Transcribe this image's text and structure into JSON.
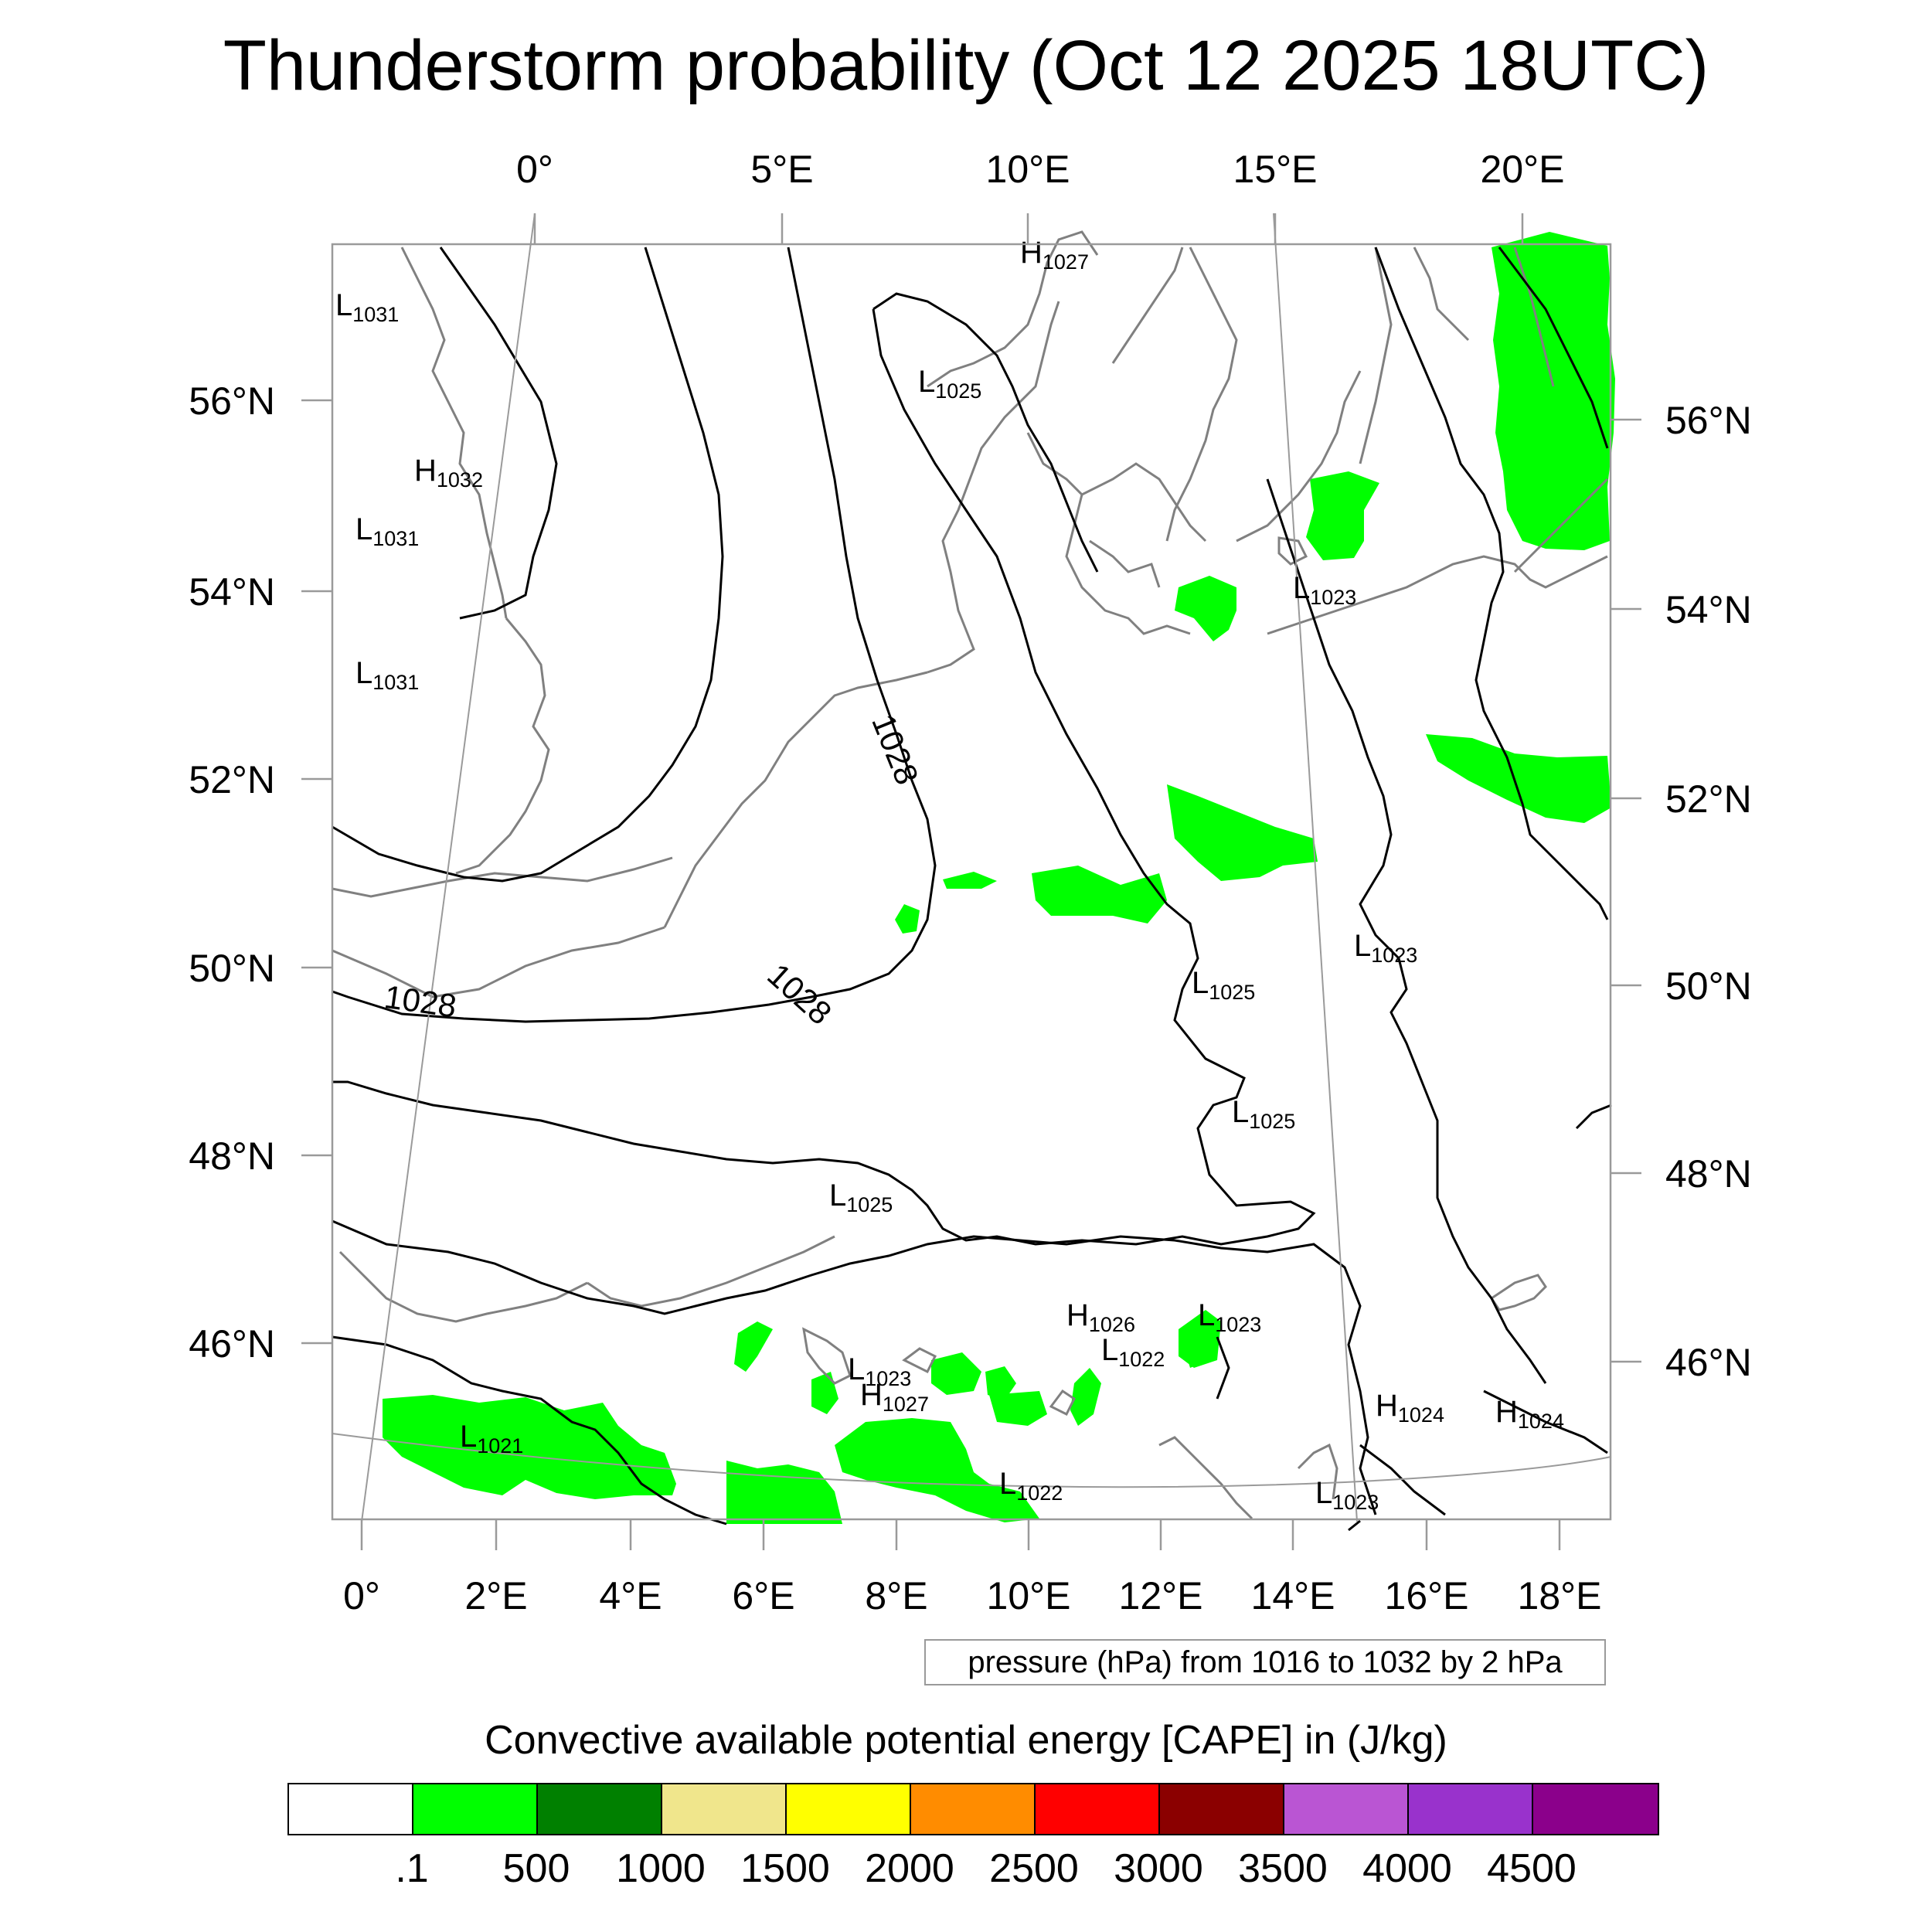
{
  "title": "Thunderstorm probability (Oct 12 2025 18UTC)",
  "axes": {
    "top_lon_labels": [
      "0°",
      "5°E",
      "10°E",
      "15°E",
      "20°E"
    ],
    "bottom_lon_labels": [
      "0°",
      "2°E",
      "4°E",
      "6°E",
      "8°E",
      "10°E",
      "12°E",
      "14°E",
      "16°E",
      "18°E"
    ],
    "left_lat_labels": [
      "56°N",
      "54°N",
      "52°N",
      "50°N",
      "48°N",
      "46°N"
    ],
    "right_lat_labels": [
      "56°N",
      "54°N",
      "52°N",
      "50°N",
      "48°N",
      "46°N"
    ]
  },
  "pressure_centers": [
    {
      "type": "H",
      "value": "1027"
    },
    {
      "type": "L",
      "value": "1031"
    },
    {
      "type": "L",
      "value": "1025"
    },
    {
      "type": "H",
      "value": "1032"
    },
    {
      "type": "L",
      "value": "1031"
    },
    {
      "type": "L",
      "value": "1023"
    },
    {
      "type": "L",
      "value": "1031"
    },
    {
      "type": "L",
      "value": "1023"
    },
    {
      "type": "L",
      "value": "1025"
    },
    {
      "type": "L",
      "value": "1025"
    },
    {
      "type": "L",
      "value": "1025"
    },
    {
      "type": "H",
      "value": "1026"
    },
    {
      "type": "L",
      "value": "1023"
    },
    {
      "type": "L",
      "value": "1022"
    },
    {
      "type": "L",
      "value": "1023"
    },
    {
      "type": "H",
      "value": "1027"
    },
    {
      "type": "H",
      "value": "1024"
    },
    {
      "type": "H",
      "value": "1024"
    },
    {
      "type": "L",
      "value": "1021"
    },
    {
      "type": "L",
      "value": "1022"
    },
    {
      "type": "L",
      "value": "1023"
    }
  ],
  "contour_labels": [
    "1028",
    "1028",
    "1028"
  ],
  "contour_note": "pressure (hPa) from 1016 to 1032 by 2 hPa",
  "legend": {
    "title": "Convective available potential energy [CAPE] in (J/kg)",
    "colors": [
      "#ffffff",
      "#00ff00",
      "#008000",
      "#f0e68c",
      "#ffff00",
      "#ff8c00",
      "#ff0000",
      "#8b0000",
      "#ba55d3",
      "#9932cc",
      "#8b008b"
    ],
    "labels": [
      ".1",
      "500",
      "1000",
      "1500",
      "2000",
      "2500",
      "3000",
      "3500",
      "4000",
      "4500"
    ]
  },
  "colors": {
    "cape_fill": "#00ff00",
    "coastline": "#808080",
    "isobar": "#000000",
    "frame": "#9a9a9a"
  }
}
